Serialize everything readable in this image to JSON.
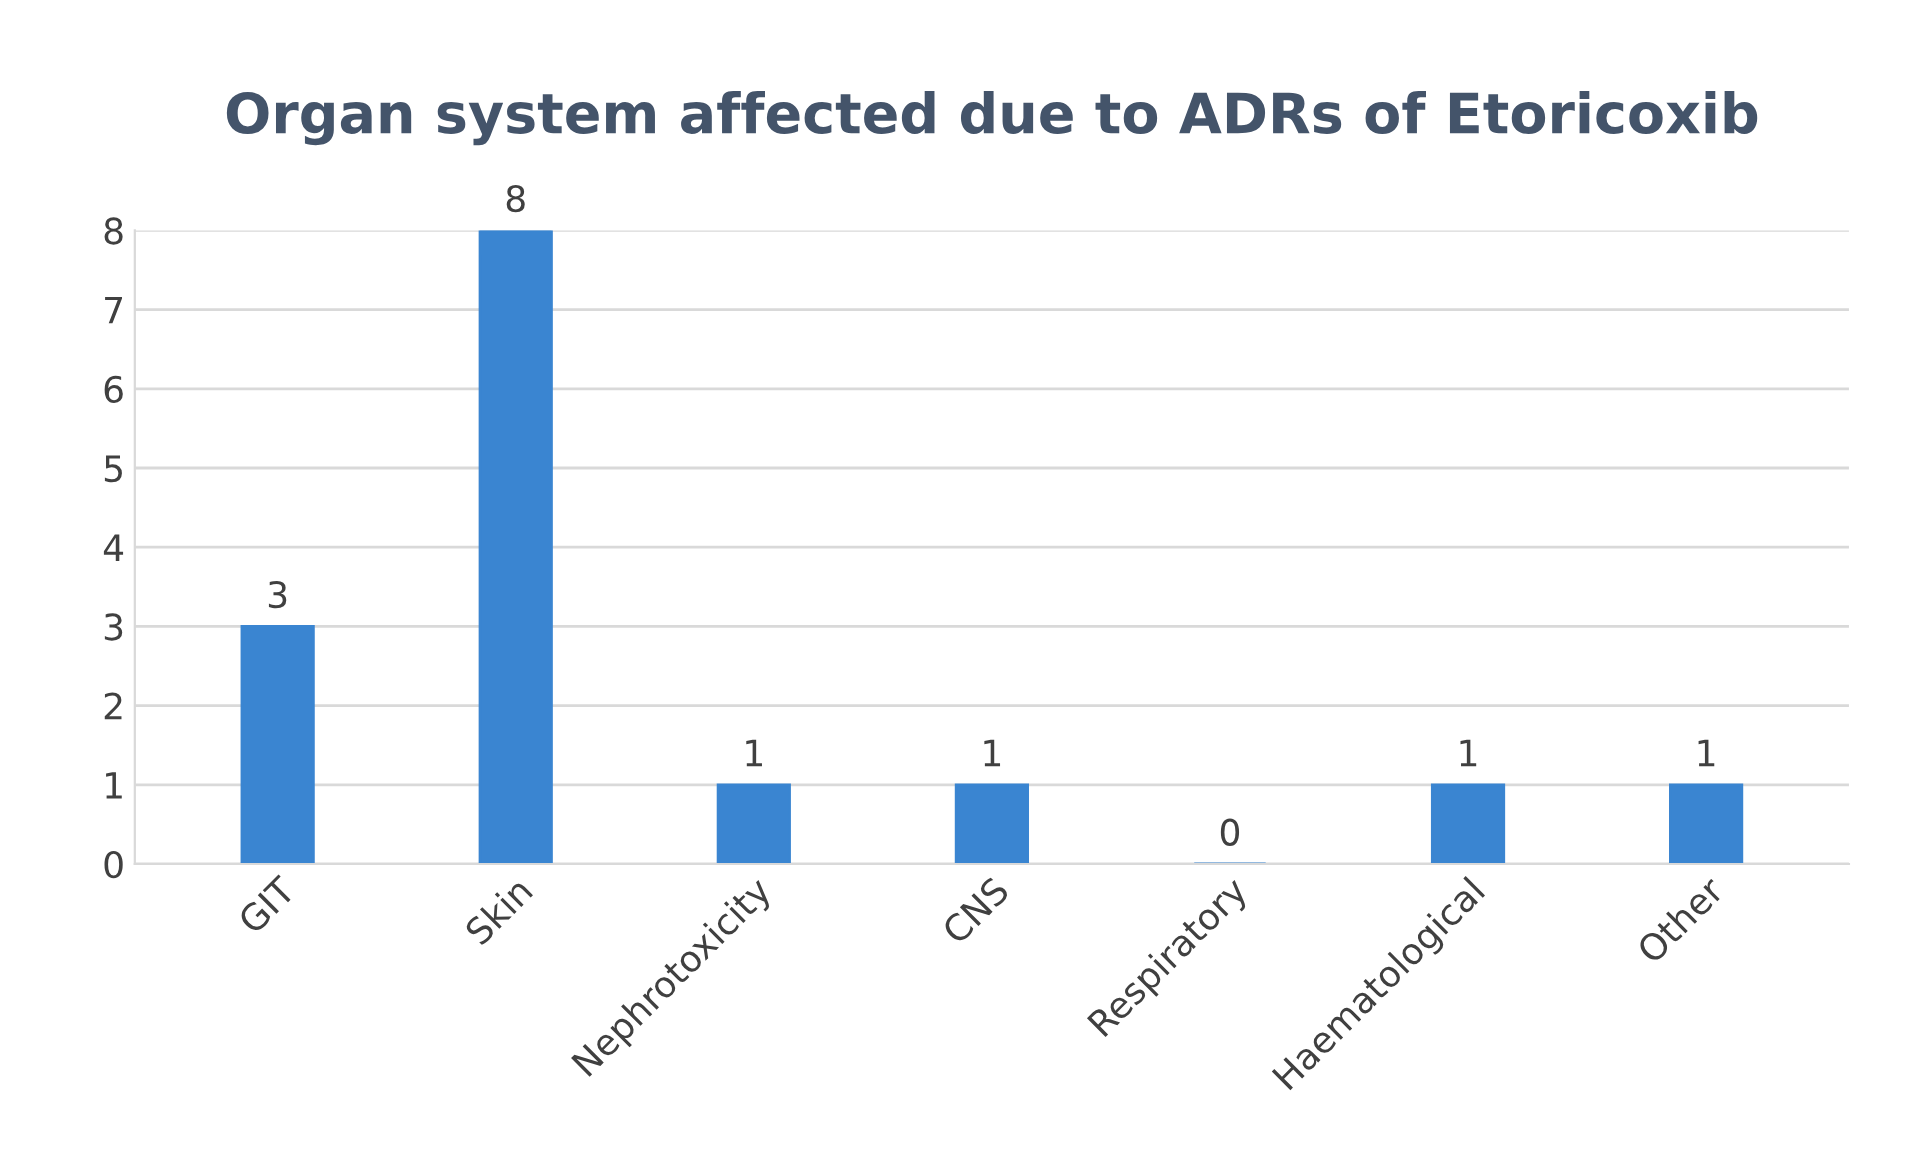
{
  "chart_data": {
    "type": "bar",
    "title": "Organ system affected due to ADRs of Etoricoxib",
    "categories": [
      "GIT",
      "Skin",
      "Nephrotoxicity",
      "CNS",
      "Respiratory",
      "Haematological",
      "Other"
    ],
    "values": [
      3,
      8,
      1,
      1,
      0,
      1,
      1
    ],
    "color": "#3a85d1",
    "ylim": [
      0,
      8
    ],
    "yticks": [
      0,
      1,
      2,
      3,
      4,
      5,
      6,
      7,
      8
    ],
    "grid": "y",
    "data_labels": true
  }
}
